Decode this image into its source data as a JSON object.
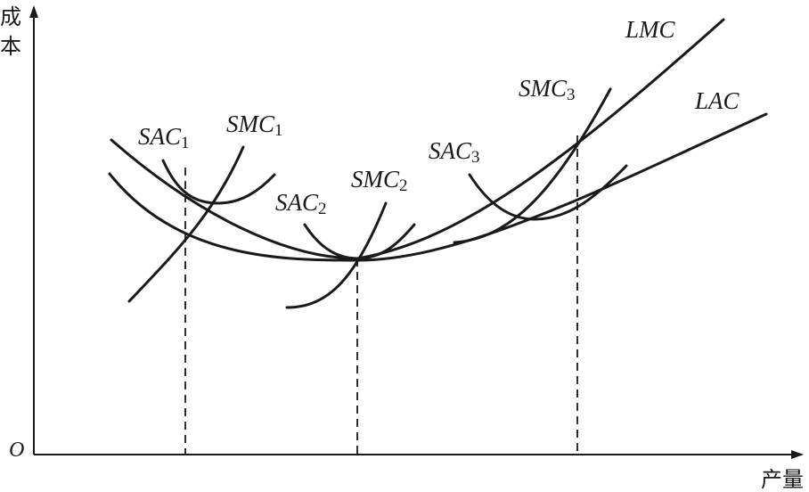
{
  "axes": {
    "y_title_line1": "成",
    "y_title_line2": "本",
    "x_title": "产量",
    "origin": "O"
  },
  "curves": {
    "sac1": {
      "main": "SAC",
      "sub": "1"
    },
    "smc1": {
      "main": "SMC",
      "sub": "1"
    },
    "sac2": {
      "main": "SAC",
      "sub": "2"
    },
    "smc2": {
      "main": "SMC",
      "sub": "2"
    },
    "sac3": {
      "main": "SAC",
      "sub": "3"
    },
    "smc3": {
      "main": "SMC",
      "sub": "3"
    },
    "lmc": {
      "main": "LMC"
    },
    "lac": {
      "main": "LAC"
    }
  }
}
